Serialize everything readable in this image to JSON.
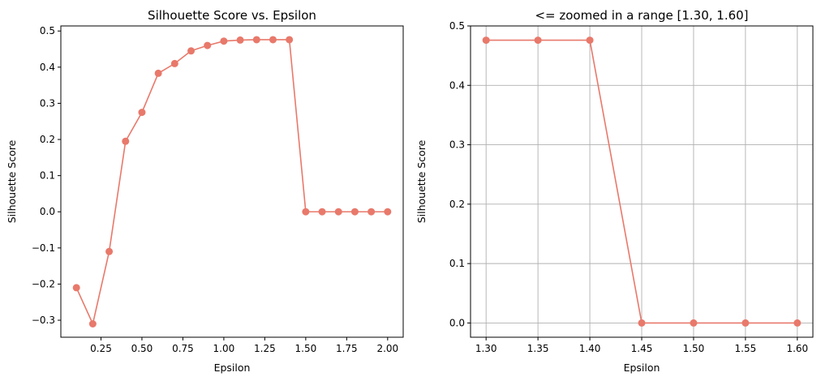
{
  "chart_data": [
    {
      "type": "line",
      "title": "Silhouette Score vs. Epsilon",
      "xlabel": "Epsilon",
      "ylabel": "Silhouette Score",
      "xlim": [
        0.005,
        2.095
      ],
      "ylim": [
        -0.347,
        0.514
      ],
      "xticks": [
        0.25,
        0.5,
        0.75,
        1.0,
        1.25,
        1.5,
        1.75,
        2.0
      ],
      "xtick_labels": [
        "0.25",
        "0.50",
        "0.75",
        "1.00",
        "1.25",
        "1.50",
        "1.75",
        "2.00"
      ],
      "yticks": [
        -0.3,
        -0.2,
        -0.1,
        0.0,
        0.1,
        0.2,
        0.3,
        0.4,
        0.5
      ],
      "ytick_labels": [
        "−0.3",
        "−0.2",
        "−0.1",
        "0.0",
        "0.1",
        "0.2",
        "0.3",
        "0.4",
        "0.5"
      ],
      "grid": false,
      "color": "#e8796b",
      "x": [
        0.1,
        0.2,
        0.3,
        0.4,
        0.5,
        0.6,
        0.7,
        0.8,
        0.9,
        1.0,
        1.1,
        1.2,
        1.3,
        1.4,
        1.5,
        1.6,
        1.7,
        1.8,
        1.9,
        2.0
      ],
      "y": [
        -0.21,
        -0.31,
        -0.11,
        0.195,
        0.275,
        0.383,
        0.41,
        0.445,
        0.46,
        0.472,
        0.475,
        0.476,
        0.476,
        0.476,
        0.0,
        0.0,
        0.0,
        0.0,
        0.0,
        0.0
      ]
    },
    {
      "type": "line",
      "title": "<=  zoomed in a range [1.30, 1.60]",
      "xlabel": "Epsilon",
      "ylabel": "Silhouette Score",
      "xlim": [
        1.285,
        1.615
      ],
      "ylim": [
        -0.024,
        0.5
      ],
      "xticks": [
        1.3,
        1.35,
        1.4,
        1.45,
        1.5,
        1.55,
        1.6
      ],
      "xtick_labels": [
        "1.30",
        "1.35",
        "1.40",
        "1.45",
        "1.50",
        "1.55",
        "1.60"
      ],
      "yticks": [
        0.0,
        0.1,
        0.2,
        0.3,
        0.4,
        0.5
      ],
      "ytick_labels": [
        "0.0",
        "0.1",
        "0.2",
        "0.3",
        "0.4",
        "0.5"
      ],
      "grid": true,
      "color": "#e8796b",
      "x": [
        1.3,
        1.35,
        1.4,
        1.45,
        1.5,
        1.55,
        1.6
      ],
      "y": [
        0.476,
        0.476,
        0.476,
        0.0,
        0.0,
        0.0,
        0.0
      ]
    }
  ]
}
